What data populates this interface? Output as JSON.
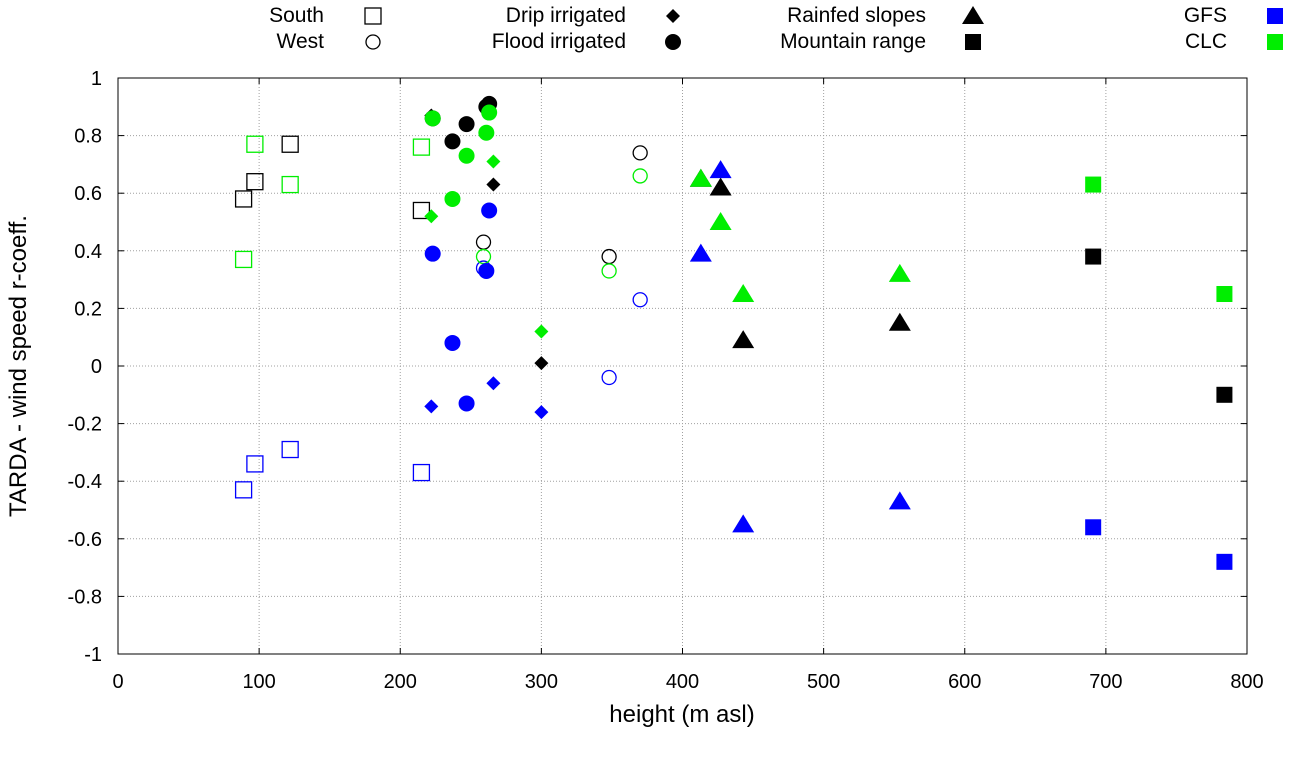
{
  "chart_data": {
    "type": "scatter",
    "title": "",
    "xlabel": "height (m asl)",
    "ylabel": "TARDA - wind speed r-coeff.",
    "xlim": [
      0,
      800
    ],
    "ylim": [
      -1,
      1
    ],
    "xticks": [
      0,
      100,
      200,
      300,
      400,
      500,
      600,
      700,
      800
    ],
    "yticks": [
      -1,
      -0.8,
      -0.6,
      -0.4,
      -0.2,
      0,
      0.2,
      0.4,
      0.6,
      0.8,
      1
    ],
    "grid": true,
    "legend_position": "top",
    "colors": {
      "black": "#000000",
      "GFS": "#0000ff",
      "CLC": "#00ee00"
    },
    "legend": [
      {
        "label": "South",
        "marker": "open-square",
        "color": "black"
      },
      {
        "label": "West",
        "marker": "open-circle",
        "color": "black"
      },
      {
        "label": "Drip irrigated",
        "marker": "diamond",
        "color": "black"
      },
      {
        "label": "Flood irrigated",
        "marker": "circle",
        "color": "black"
      },
      {
        "label": "Rainfed slopes",
        "marker": "triangle",
        "color": "black"
      },
      {
        "label": "Mountain range",
        "marker": "square",
        "color": "black"
      },
      {
        "label": "GFS",
        "marker": "square",
        "color": "GFS"
      },
      {
        "label": "CLC",
        "marker": "square",
        "color": "CLC"
      }
    ],
    "series": [
      {
        "name": "South (black)",
        "marker": "open-square",
        "color": "black",
        "points": [
          [
            89,
            0.58
          ],
          [
            97,
            0.64
          ],
          [
            122,
            0.77
          ],
          [
            215,
            0.54
          ]
        ]
      },
      {
        "name": "South (GFS)",
        "marker": "open-square",
        "color": "GFS",
        "points": [
          [
            89,
            -0.43
          ],
          [
            97,
            -0.34
          ],
          [
            122,
            -0.29
          ],
          [
            215,
            -0.37
          ]
        ]
      },
      {
        "name": "South (CLC)",
        "marker": "open-square",
        "color": "CLC",
        "points": [
          [
            89,
            0.37
          ],
          [
            97,
            0.77
          ],
          [
            122,
            0.63
          ],
          [
            215,
            0.76
          ]
        ]
      },
      {
        "name": "West (black)",
        "marker": "open-circle",
        "color": "black",
        "points": [
          [
            259,
            0.43
          ],
          [
            348,
            0.38
          ],
          [
            370,
            0.74
          ]
        ]
      },
      {
        "name": "West (GFS)",
        "marker": "open-circle",
        "color": "GFS",
        "points": [
          [
            259,
            0.34
          ],
          [
            348,
            -0.04
          ],
          [
            370,
            0.23
          ]
        ]
      },
      {
        "name": "West (CLC)",
        "marker": "open-circle",
        "color": "CLC",
        "points": [
          [
            259,
            0.38
          ],
          [
            348,
            0.33
          ],
          [
            370,
            0.66
          ]
        ]
      },
      {
        "name": "Drip irrigated (black)",
        "marker": "diamond",
        "color": "black",
        "points": [
          [
            222,
            0.87
          ],
          [
            266,
            0.63
          ],
          [
            300,
            0.01
          ]
        ]
      },
      {
        "name": "Drip irrigated (GFS)",
        "marker": "diamond",
        "color": "GFS",
        "points": [
          [
            222,
            -0.14
          ],
          [
            266,
            -0.06
          ],
          [
            300,
            -0.16
          ]
        ]
      },
      {
        "name": "Drip irrigated (CLC)",
        "marker": "diamond",
        "color": "CLC",
        "points": [
          [
            222,
            0.52
          ],
          [
            266,
            0.71
          ],
          [
            300,
            0.12
          ]
        ]
      },
      {
        "name": "Flood irrigated (black)",
        "marker": "circle",
        "color": "black",
        "points": [
          [
            223,
            0.86
          ],
          [
            237,
            0.78
          ],
          [
            247,
            0.84
          ],
          [
            261,
            0.9
          ],
          [
            263,
            0.91
          ]
        ]
      },
      {
        "name": "Flood irrigated (GFS)",
        "marker": "circle",
        "color": "GFS",
        "points": [
          [
            223,
            0.39
          ],
          [
            237,
            0.08
          ],
          [
            247,
            -0.13
          ],
          [
            261,
            0.33
          ],
          [
            263,
            0.54
          ]
        ]
      },
      {
        "name": "Flood irrigated (CLC)",
        "marker": "circle",
        "color": "CLC",
        "points": [
          [
            223,
            0.86
          ],
          [
            237,
            0.58
          ],
          [
            247,
            0.73
          ],
          [
            261,
            0.81
          ],
          [
            263,
            0.88
          ]
        ]
      },
      {
        "name": "Rainfed slopes (black)",
        "marker": "triangle",
        "color": "black",
        "points": [
          [
            413,
            0.65
          ],
          [
            427,
            0.62
          ],
          [
            443,
            0.09
          ],
          [
            554,
            0.15
          ]
        ]
      },
      {
        "name": "Rainfed slopes (GFS)",
        "marker": "triangle",
        "color": "GFS",
        "points": [
          [
            413,
            0.39
          ],
          [
            427,
            0.68
          ],
          [
            443,
            -0.55
          ],
          [
            554,
            -0.47
          ]
        ]
      },
      {
        "name": "Rainfed slopes (CLC)",
        "marker": "triangle",
        "color": "CLC",
        "points": [
          [
            413,
            0.65
          ],
          [
            427,
            0.5
          ],
          [
            443,
            0.25
          ],
          [
            554,
            0.32
          ]
        ]
      },
      {
        "name": "Mountain range (black)",
        "marker": "square",
        "color": "black",
        "points": [
          [
            691,
            0.38
          ],
          [
            784,
            -0.1
          ]
        ]
      },
      {
        "name": "Mountain range (GFS)",
        "marker": "square",
        "color": "GFS",
        "points": [
          [
            691,
            -0.56
          ],
          [
            784,
            -0.68
          ]
        ]
      },
      {
        "name": "Mountain range (CLC)",
        "marker": "square",
        "color": "CLC",
        "points": [
          [
            691,
            0.63
          ],
          [
            784,
            0.25
          ]
        ]
      }
    ]
  }
}
